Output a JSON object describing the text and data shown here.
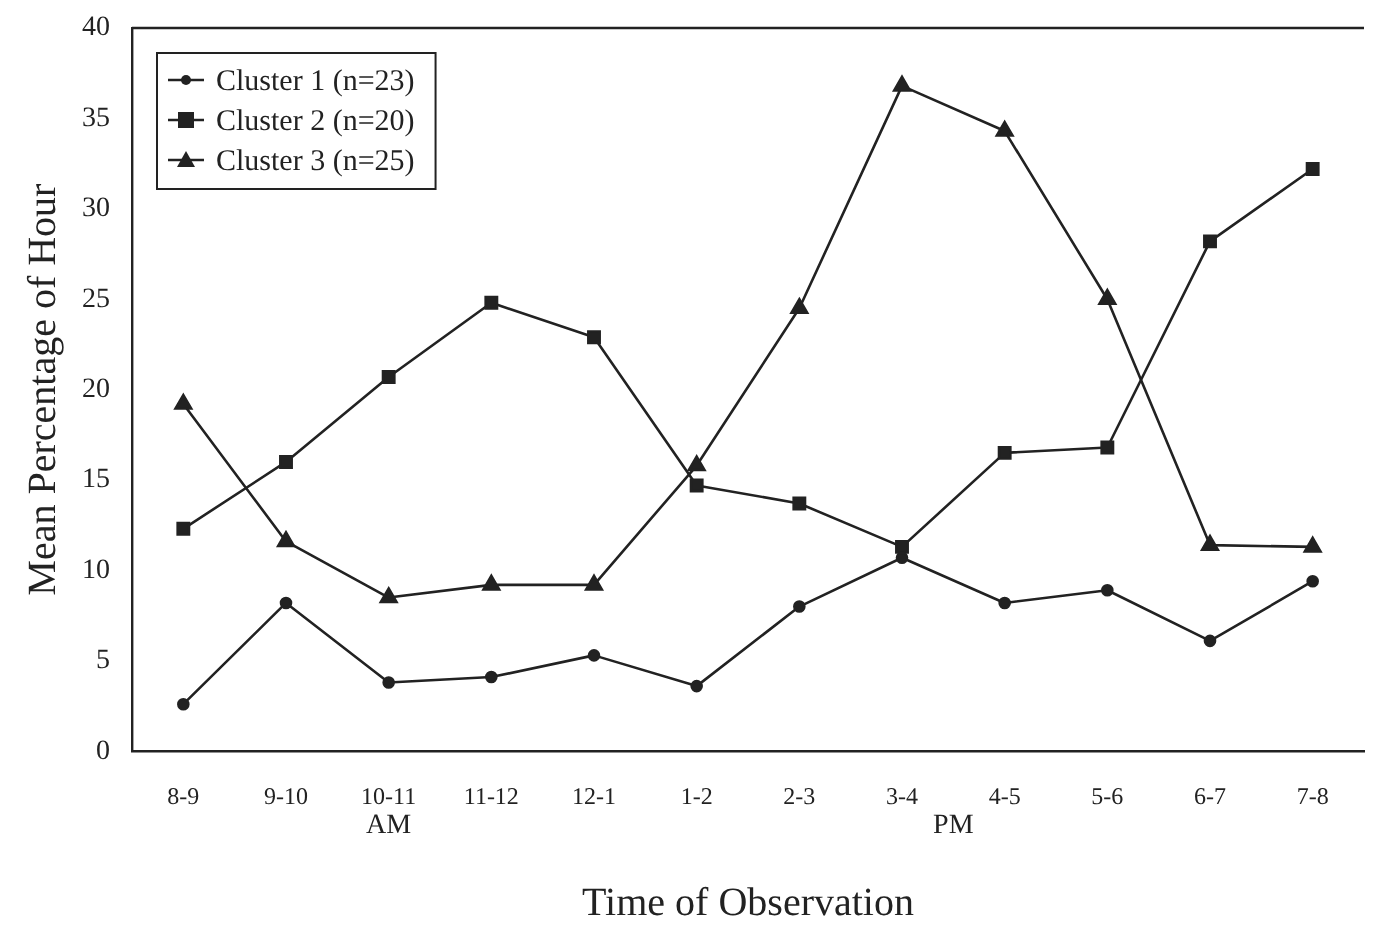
{
  "chart_data": {
    "type": "line",
    "xlabel": "Time of Observation",
    "ylabel": "Mean Percentage of Hour",
    "categories": [
      "8-9",
      "9-10",
      "10-11",
      "11-12",
      "12-1",
      "1-2",
      "2-3",
      "3-4",
      "4-5",
      "5-6",
      "6-7",
      "7-8"
    ],
    "series": [
      {
        "name": "Cluster 1 (n=23)",
        "color": "#222222",
        "marker": "circle",
        "values": [
          2.6,
          8.2,
          3.8,
          4.1,
          5.3,
          3.6,
          8.0,
          10.7,
          8.2,
          8.9,
          6.1,
          9.4
        ]
      },
      {
        "name": "Cluster 2 (n=20)",
        "color": "#222222",
        "marker": "square",
        "values": [
          12.3,
          16.0,
          20.7,
          24.8,
          22.9,
          14.7,
          13.7,
          11.3,
          16.5,
          16.8,
          28.2,
          32.2
        ]
      },
      {
        "name": "Cluster 3 (n=25)",
        "color": "#222222",
        "marker": "triangle",
        "values": [
          19.2,
          11.6,
          8.5,
          9.2,
          9.2,
          15.8,
          24.5,
          36.8,
          34.3,
          25.0,
          11.4,
          11.3
        ]
      }
    ],
    "ylim": [
      0,
      40
    ],
    "yticks": [
      0,
      5,
      10,
      15,
      20,
      25,
      30,
      35,
      40
    ],
    "grid": false,
    "legend": "top left",
    "annotations": [
      "AM",
      "PM"
    ]
  }
}
